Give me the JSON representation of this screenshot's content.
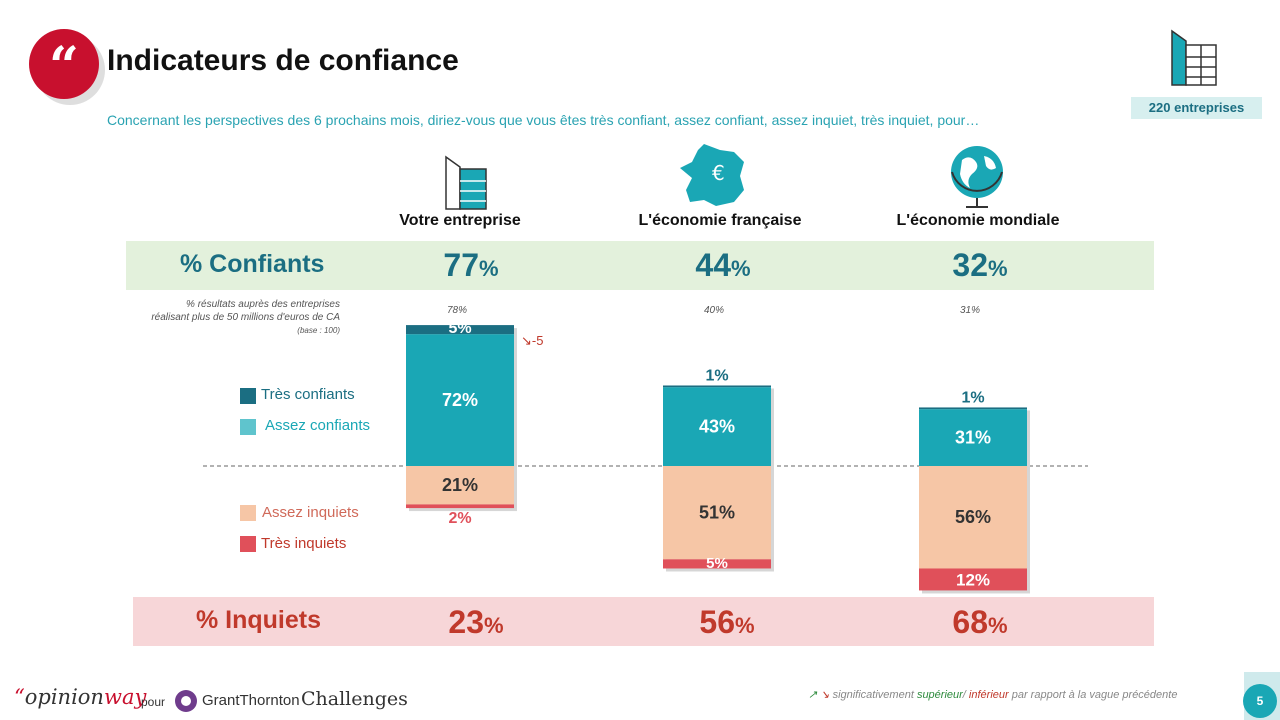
{
  "header": {
    "title": "Indicateurs de confiance",
    "question": "Concernant les perspectives des 6 prochains mois, diriez-vous que vous êtes très confiant, assez confiant, assez inquiet, très inquiet, pour…",
    "base": "220 entreprises"
  },
  "colors": {
    "tres_confiants": "#1b6e82",
    "assez_confiants": "#1aa7b5",
    "assez_inquiets": "#f6c6a6",
    "tres_inquiets": "#e0505a",
    "confiants_band": "#e3f1dc",
    "inquiets_band": "#f7d6d8"
  },
  "summary": {
    "confiants_label": "% Confiants",
    "inquiets_label": "% Inquiets",
    "confiants": [
      "77",
      "44",
      "32"
    ],
    "inquiets": [
      "23",
      "56",
      "68"
    ],
    "pct": "%"
  },
  "reference": {
    "note_line1": "% résultats auprès des entreprises",
    "note_line2": "réalisant plus de 50 millions d'euros de CA",
    "note_line3": "(base : 100)",
    "values": [
      "78%",
      "40%",
      "31%"
    ]
  },
  "legend": [
    {
      "label": "Très confiants",
      "color": "#1b6e82"
    },
    {
      "label": "Assez confiants",
      "color": "#1aa7b5"
    },
    {
      "label": "Assez inquiets",
      "color": "#f6c6a6"
    },
    {
      "label": "Très inquiets",
      "color": "#e0505a"
    }
  ],
  "delta": {
    "value": "-5",
    "icon": "arrow-down-icon"
  },
  "chart_data": {
    "type": "bar",
    "categories": [
      "Votre entreprise",
      "L'économie française",
      "L'économie mondiale"
    ],
    "series": [
      {
        "name": "Très confiants",
        "values": [
          5,
          1,
          1
        ]
      },
      {
        "name": "Assez confiants",
        "values": [
          72,
          43,
          31
        ]
      },
      {
        "name": "Assez inquiets",
        "values": [
          21,
          51,
          56
        ]
      },
      {
        "name": "Très inquiets",
        "values": [
          2,
          5,
          12
        ]
      }
    ],
    "value_labels": [
      [
        "5%",
        "72%",
        "21%",
        "2%"
      ],
      [
        "1%",
        "43%",
        "51%",
        "5%"
      ],
      [
        "1%",
        "31%",
        "56%",
        "12%"
      ]
    ]
  },
  "footer": {
    "brand_quote": "“",
    "brand_opinion": "opinion",
    "brand_way": "way",
    "pour": "pour",
    "grant_thornton": "GrantThornton",
    "challenges": "Challenges",
    "note_arrows": "↗ ↘",
    "note_prefix": "significativement ",
    "note_sup": "supérieur",
    "note_sep": "/ ",
    "note_inf": "inférieur",
    "note_suffix": " par rapport à la vague précédente",
    "page": "5"
  }
}
